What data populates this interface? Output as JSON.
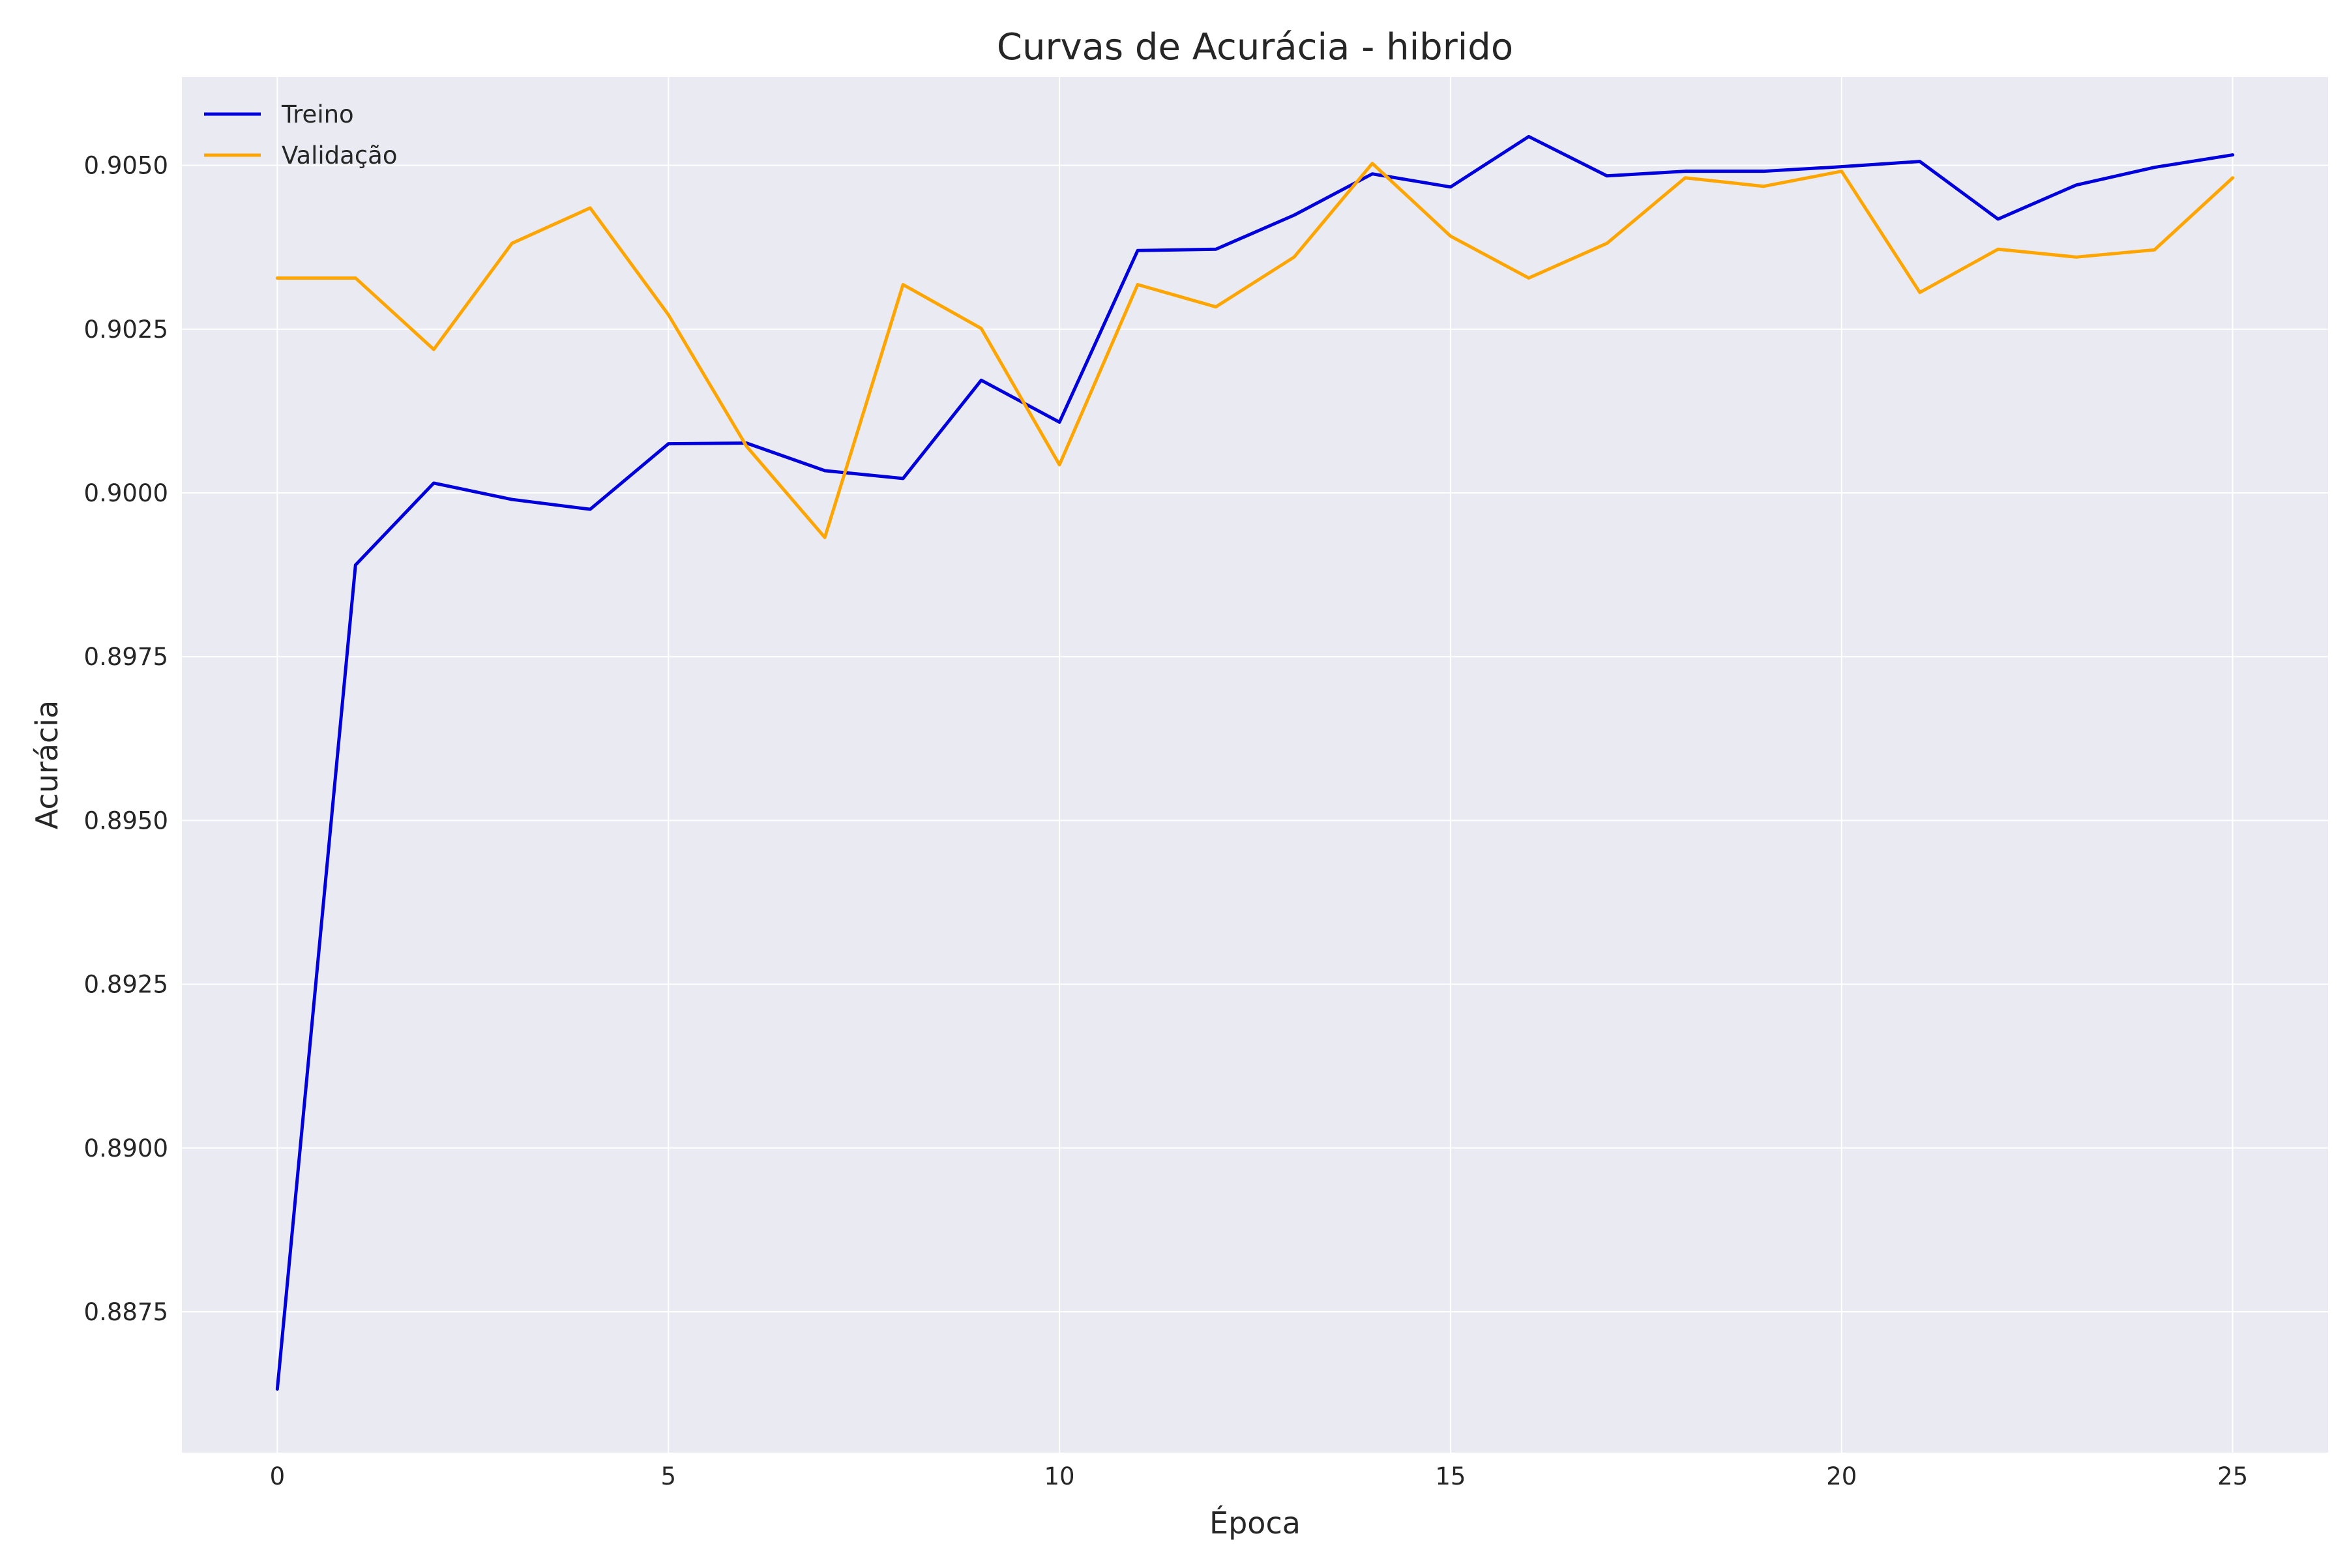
{
  "chart_data": {
    "type": "line",
    "title": "Curvas de Acurácia - hibrido",
    "xlabel": "Época",
    "ylabel": "Acurácia",
    "x": [
      0,
      1,
      2,
      3,
      4,
      5,
      6,
      7,
      8,
      9,
      10,
      11,
      12,
      13,
      14,
      15,
      16,
      17,
      18,
      19,
      20,
      21,
      22,
      23,
      24,
      25
    ],
    "series": [
      {
        "name": "Treino",
        "color": "#0000dd",
        "values": [
          0.88632,
          0.8989,
          0.90015,
          0.8999,
          0.89975,
          0.90075,
          0.90076,
          0.90034,
          0.90022,
          0.90172,
          0.90108,
          0.9037,
          0.90372,
          0.90424,
          0.90487,
          0.90467,
          0.90544,
          0.90484,
          0.90491,
          0.90491,
          0.90498,
          0.90506,
          0.90418,
          0.9047,
          0.90497,
          0.90516
        ]
      },
      {
        "name": "Validação",
        "color": "#ffa500",
        "values": [
          0.90328,
          0.90328,
          0.90219,
          0.90381,
          0.90435,
          0.90272,
          0.90071,
          0.89932,
          0.90318,
          0.90251,
          0.90043,
          0.90318,
          0.90284,
          0.9036,
          0.90503,
          0.90392,
          0.90328,
          0.90381,
          0.90481,
          0.90468,
          0.90491,
          0.90306,
          0.90372,
          0.9036,
          0.90371,
          0.90481
        ]
      }
    ],
    "xlim": [
      -1.22,
      26.22
    ],
    "ylim": [
      0.88535,
      0.90635
    ],
    "xticks": [
      "0",
      "5",
      "10",
      "15",
      "20",
      "25"
    ],
    "yticks": [
      "0.8875",
      "0.8900",
      "0.8925",
      "0.8950",
      "0.8975",
      "0.9000",
      "0.9025",
      "0.9050"
    ],
    "grid": true,
    "legend": "top-left",
    "background": "#eaeaf2"
  }
}
